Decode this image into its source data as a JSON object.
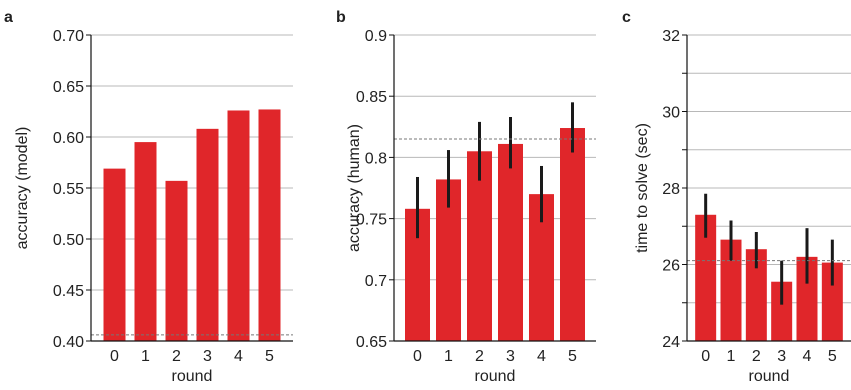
{
  "colors": {
    "bar": "#e0262a",
    "error_bar": "#1a1a1a",
    "grid": "#b8b8b8",
    "baseline": "#777777",
    "axis": "#111111"
  },
  "chart_data": [
    {
      "type": "bar",
      "panel": "a",
      "categories": [
        "0",
        "1",
        "2",
        "3",
        "4",
        "5"
      ],
      "values": [
        0.569,
        0.595,
        0.557,
        0.608,
        0.626,
        0.627
      ],
      "errors": null,
      "xlabel": "round",
      "ylabel": "accuracy (model)",
      "ylim": [
        0.4,
        0.7
      ],
      "yticks": [
        0.4,
        0.45,
        0.5,
        0.55,
        0.6,
        0.65,
        0.7
      ],
      "ytick_labels": [
        "0.40",
        "0.45",
        "0.50",
        "0.55",
        "0.60",
        "0.65",
        "0.70"
      ],
      "reference_line": 0.406,
      "grid": "horizontal"
    },
    {
      "type": "bar",
      "panel": "b",
      "categories": [
        "0",
        "1",
        "2",
        "3",
        "4",
        "5"
      ],
      "values": [
        0.758,
        0.782,
        0.805,
        0.811,
        0.77,
        0.824
      ],
      "errors": [
        [
          0.734,
          0.784
        ],
        [
          0.759,
          0.806
        ],
        [
          0.781,
          0.829
        ],
        [
          0.791,
          0.833
        ],
        [
          0.747,
          0.793
        ],
        [
          0.804,
          0.845
        ]
      ],
      "xlabel": "round",
      "ylabel": "accuracy (human)",
      "ylim": [
        0.65,
        0.9
      ],
      "yticks": [
        0.65,
        0.7,
        0.75,
        0.8,
        0.85,
        0.9
      ],
      "ytick_labels": [
        "0.65",
        "0.7",
        "0.75",
        "0.8",
        "0.85",
        "0.9"
      ],
      "reference_line": 0.815,
      "grid": "horizontal"
    },
    {
      "type": "bar",
      "panel": "c",
      "categories": [
        "0",
        "1",
        "2",
        "3",
        "4",
        "5"
      ],
      "values": [
        27.3,
        26.65,
        26.4,
        25.55,
        26.2,
        26.05
      ],
      "errors": [
        [
          26.7,
          27.85
        ],
        [
          26.1,
          27.15
        ],
        [
          25.9,
          26.85
        ],
        [
          24.95,
          26.1
        ],
        [
          25.5,
          26.95
        ],
        [
          25.45,
          26.65
        ]
      ],
      "xlabel": "round",
      "ylabel": "time to solve (sec)",
      "ylim": [
        24,
        32
      ],
      "yticks": [
        24,
        25,
        26,
        27,
        28,
        29,
        30,
        31,
        32
      ],
      "ytick_labels": [
        "24",
        "",
        "26",
        "",
        "28",
        "",
        "30",
        "",
        "32"
      ],
      "reference_line": 26.1,
      "grid": "horizontal"
    }
  ]
}
